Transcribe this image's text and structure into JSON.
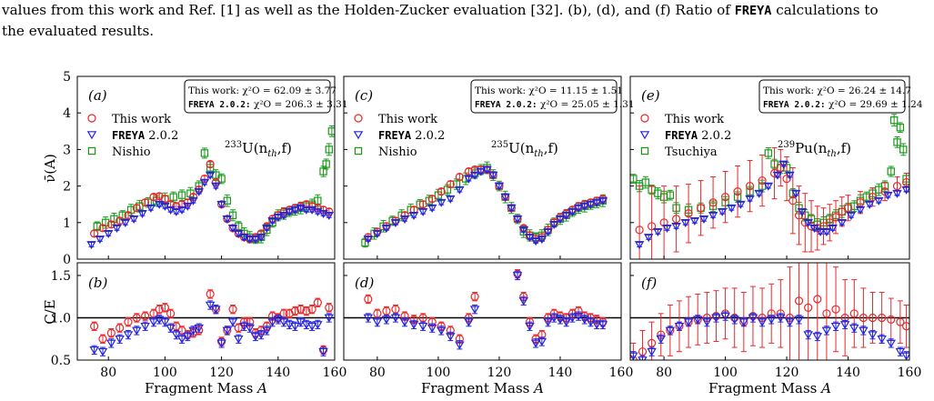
{
  "caption": {
    "line1_pre": "values from this work and Ref. [1] as well as the Holden-Zucker evaluation [32]. (b), (d), and (f) Ratio of ",
    "line1_code": "FREYA",
    "line1_post": " calculations to",
    "line2": "the evaluated results."
  },
  "shared": {
    "xlabel": "Fragment Mass A",
    "ylabel_top": "ν̄(A)",
    "ylabel_bottom": "C/E",
    "xlim": [
      69,
      160
    ],
    "xticks": [
      80,
      100,
      120,
      140,
      160
    ],
    "top_ylim": [
      0,
      5
    ],
    "top_yticks": [
      0,
      1,
      2,
      3,
      4,
      5
    ],
    "bottom_ylim": [
      0.5,
      1.65
    ],
    "bottom_yticks": [
      0.5,
      1.0,
      1.5
    ],
    "bottom_ytick_labels": [
      "0.5",
      "1.0",
      "1.5"
    ],
    "reference_line": 1.0,
    "colors": {
      "this_work": "#e8282a",
      "freya": "#2323e0",
      "other": "#1a9a1a"
    },
    "markers": {
      "this_work": "circle",
      "freya": "triangle-down",
      "other": "square"
    }
  },
  "chart_data": [
    {
      "type": "scatter",
      "panel_top": "(a)",
      "panel_bottom": "(b)",
      "reaction_sup": "233",
      "reaction_main": "U(n",
      "reaction_sub": "th",
      "reaction_end": ",f)",
      "chi2_line1": "This work: χ²O = 62.09 ± 3.77",
      "chi2_line2_code": "FREYA 2.0.2:",
      "chi2_line2_rest": " χ²O = 206.3 ± 3.31",
      "legend": [
        "This work",
        "FREYA 2.0.2",
        "Nishio"
      ],
      "this_work_x": [
        75,
        78,
        81,
        84,
        87,
        90,
        93,
        96,
        98,
        100,
        102,
        104,
        106,
        108,
        110,
        112,
        114,
        116,
        118,
        120,
        122,
        124,
        126,
        128,
        130,
        132,
        134,
        136,
        138,
        140,
        142,
        144,
        146,
        148,
        150,
        152,
        154,
        156,
        158
      ],
      "this_work_y": [
        0.7,
        0.85,
        0.95,
        1.05,
        1.2,
        1.4,
        1.55,
        1.7,
        1.72,
        1.65,
        1.5,
        1.45,
        1.5,
        1.55,
        1.7,
        1.9,
        2.2,
        2.6,
        2.1,
        1.5,
        1.1,
        0.85,
        0.7,
        0.6,
        0.55,
        0.6,
        0.7,
        0.9,
        1.1,
        1.2,
        1.3,
        1.35,
        1.4,
        1.45,
        1.5,
        1.45,
        1.4,
        1.35,
        1.3
      ],
      "freya_x": [
        74,
        77,
        80,
        83,
        86,
        89,
        92,
        95,
        98,
        100,
        102,
        104,
        106,
        108,
        110,
        112,
        114,
        116,
        118,
        120,
        122,
        124,
        126,
        128,
        130,
        132,
        134,
        136,
        138,
        140,
        142,
        144,
        146,
        148,
        150,
        152,
        154,
        156,
        158
      ],
      "freya_y": [
        0.4,
        0.55,
        0.7,
        0.85,
        1.0,
        1.1,
        1.25,
        1.4,
        1.5,
        1.45,
        1.35,
        1.3,
        1.35,
        1.45,
        1.6,
        1.85,
        2.1,
        2.3,
        2.0,
        1.5,
        1.1,
        0.85,
        0.7,
        0.6,
        0.55,
        0.55,
        0.6,
        0.85,
        1.05,
        1.15,
        1.2,
        1.3,
        1.35,
        1.4,
        1.35,
        1.35,
        1.3,
        1.25,
        1.2
      ],
      "other_x": [
        76,
        79,
        82,
        85,
        88,
        91,
        94,
        97,
        100,
        103,
        106,
        109,
        112,
        114,
        116,
        118,
        120,
        122,
        124,
        126,
        128,
        130,
        132,
        134,
        136,
        138,
        140,
        142,
        144,
        146,
        148,
        150,
        152,
        154,
        156,
        157,
        158,
        159
      ],
      "other_y": [
        0.9,
        1.0,
        1.1,
        1.2,
        1.35,
        1.45,
        1.55,
        1.6,
        1.65,
        1.7,
        1.75,
        1.8,
        2.0,
        2.9,
        2.5,
        2.3,
        2.2,
        1.6,
        1.2,
        0.9,
        0.7,
        0.6,
        0.55,
        0.6,
        0.8,
        1.0,
        1.2,
        1.25,
        1.3,
        1.35,
        1.4,
        1.45,
        1.5,
        1.6,
        2.4,
        2.6,
        3.0,
        3.5
      ],
      "ratio_this_work_x": [
        75,
        78,
        81,
        84,
        87,
        90,
        93,
        96,
        98,
        100,
        102,
        104,
        106,
        108,
        110,
        112,
        116,
        118,
        120,
        122,
        124,
        126,
        128,
        130,
        132,
        134,
        136,
        138,
        140,
        142,
        144,
        146,
        148,
        150,
        152,
        154,
        156,
        158
      ],
      "ratio_this_work_y": [
        0.9,
        0.75,
        0.82,
        0.88,
        0.95,
        1.0,
        1.02,
        1.05,
        1.1,
        1.12,
        1.05,
        0.9,
        0.85,
        0.8,
        0.82,
        0.85,
        1.28,
        1.1,
        0.72,
        0.85,
        1.1,
        0.88,
        0.95,
        0.95,
        0.82,
        0.85,
        0.9,
        1.02,
        1.0,
        1.05,
        1.05,
        1.08,
        1.1,
        1.08,
        1.1,
        1.18,
        0.62,
        1.12
      ],
      "ratio_freya_x": [
        75,
        78,
        81,
        84,
        87,
        90,
        93,
        96,
        98,
        100,
        102,
        104,
        106,
        108,
        110,
        112,
        116,
        118,
        120,
        122,
        124,
        126,
        128,
        130,
        132,
        134,
        136,
        138,
        140,
        142,
        144,
        146,
        148,
        150,
        152,
        154,
        156,
        158
      ],
      "ratio_freya_y": [
        0.62,
        0.6,
        0.7,
        0.75,
        0.8,
        0.85,
        0.9,
        0.95,
        0.98,
        0.95,
        0.88,
        0.8,
        0.75,
        0.78,
        0.85,
        0.88,
        1.15,
        1.1,
        0.7,
        0.85,
        0.95,
        0.75,
        0.9,
        0.88,
        0.78,
        0.8,
        0.85,
        0.95,
        0.98,
        0.95,
        0.92,
        0.9,
        0.95,
        0.92,
        0.9,
        0.92,
        0.6,
        1.0
      ]
    },
    {
      "type": "scatter",
      "panel_top": "(c)",
      "panel_bottom": "(d)",
      "reaction_sup": "235",
      "reaction_main": "U(n",
      "reaction_sub": "th",
      "reaction_end": ",f)",
      "chi2_line1": "This work: χ²O = 11.15 ± 1.51",
      "chi2_line2_code": "FREYA 2.0.2:",
      "chi2_line2_rest": " χ²O = 25.05 ± 1.31",
      "legend": [
        "This work",
        "FREYA 2.0.2",
        "Nishio"
      ],
      "this_work_x": [
        77,
        80,
        83,
        86,
        89,
        92,
        95,
        98,
        101,
        104,
        107,
        110,
        112,
        114,
        116,
        118,
        120,
        122,
        124,
        126,
        128,
        130,
        132,
        134,
        136,
        138,
        140,
        142,
        144,
        146,
        148,
        150,
        152,
        154
      ],
      "this_work_y": [
        0.6,
        0.75,
        0.9,
        1.05,
        1.2,
        1.35,
        1.5,
        1.65,
        1.85,
        2.05,
        2.25,
        2.4,
        2.45,
        2.45,
        2.45,
        2.3,
        2.0,
        1.7,
        1.4,
        1.1,
        0.85,
        0.65,
        0.55,
        0.6,
        0.8,
        1.0,
        1.15,
        1.25,
        1.35,
        1.45,
        1.5,
        1.55,
        1.6,
        1.65
      ],
      "freya_x": [
        77,
        80,
        83,
        86,
        89,
        92,
        95,
        98,
        101,
        104,
        107,
        110,
        112,
        114,
        116,
        118,
        120,
        122,
        124,
        126,
        128,
        130,
        132,
        134,
        136,
        138,
        140,
        142,
        144,
        146,
        148,
        150,
        152,
        154
      ],
      "freya_y": [
        0.55,
        0.7,
        0.85,
        1.0,
        1.1,
        1.2,
        1.3,
        1.4,
        1.55,
        1.65,
        1.9,
        2.2,
        2.3,
        2.4,
        2.45,
        2.3,
        2.0,
        1.7,
        1.4,
        1.1,
        0.8,
        0.6,
        0.5,
        0.55,
        0.75,
        0.95,
        1.1,
        1.2,
        1.3,
        1.4,
        1.45,
        1.5,
        1.55,
        1.6
      ],
      "other_x": [
        76,
        79,
        82,
        85,
        88,
        91,
        94,
        97,
        100,
        103,
        106,
        109,
        112,
        114,
        116,
        118,
        120,
        122,
        124,
        126,
        128,
        130,
        132,
        134,
        136,
        138,
        140,
        142,
        144,
        146,
        148,
        150,
        152,
        154
      ],
      "other_y": [
        0.45,
        0.7,
        0.9,
        1.05,
        1.2,
        1.35,
        1.5,
        1.6,
        1.75,
        1.9,
        2.05,
        2.2,
        2.35,
        2.45,
        2.5,
        2.3,
        2.0,
        1.7,
        1.4,
        1.1,
        0.75,
        0.65,
        0.6,
        0.65,
        0.8,
        1.0,
        1.1,
        1.2,
        1.3,
        1.4,
        1.45,
        1.5,
        1.55,
        1.6
      ],
      "ratio_this_work_x": [
        77,
        80,
        83,
        86,
        89,
        92,
        95,
        98,
        101,
        104,
        107,
        110,
        112,
        126,
        128,
        130,
        132,
        134,
        136,
        138,
        140,
        142,
        144,
        146,
        148,
        150,
        152,
        154
      ],
      "ratio_this_work_y": [
        1.22,
        1.05,
        1.08,
        1.1,
        1.02,
        0.98,
        1.0,
        0.95,
        0.9,
        0.85,
        0.75,
        1.0,
        1.25,
        1.52,
        1.25,
        0.95,
        0.75,
        0.8,
        1.0,
        1.05,
        1.02,
        1.0,
        1.05,
        1.08,
        1.02,
        1.0,
        0.98,
        0.95
      ],
      "ratio_freya_x": [
        77,
        80,
        83,
        86,
        89,
        92,
        95,
        98,
        101,
        104,
        107,
        110,
        112,
        126,
        128,
        130,
        132,
        134,
        136,
        138,
        140,
        142,
        144,
        146,
        148,
        150,
        152,
        154
      ],
      "ratio_freya_y": [
        1.0,
        0.95,
        0.98,
        1.0,
        0.95,
        0.92,
        0.9,
        0.88,
        0.85,
        0.78,
        0.68,
        0.95,
        1.1,
        1.5,
        1.2,
        0.9,
        0.7,
        0.72,
        0.95,
        1.0,
        0.98,
        0.95,
        1.0,
        1.02,
        0.98,
        0.95,
        0.92,
        0.92
      ]
    },
    {
      "type": "scatter",
      "panel_top": "(e)",
      "panel_bottom": "(f)",
      "reaction_sup": "239",
      "reaction_main": "Pu(n",
      "reaction_sub": "th",
      "reaction_end": ",f)",
      "chi2_line1": "This work: χ²O = 26.24 ± 14.7",
      "chi2_line2_code": "FREYA 2.0.2:",
      "chi2_line2_rest": " χ²O = 29.69 ± 1.24",
      "legend": [
        "This work",
        "FREYA 2.0.2",
        "Tsuchiya"
      ],
      "this_work_x": [
        72,
        76,
        80,
        84,
        88,
        92,
        96,
        100,
        104,
        108,
        112,
        116,
        118,
        120,
        122,
        124,
        126,
        128,
        130,
        132,
        134,
        136,
        138,
        140,
        144,
        148,
        152,
        156,
        159
      ],
      "this_work_y": [
        0.8,
        0.9,
        1.0,
        1.1,
        1.25,
        1.4,
        1.55,
        1.7,
        1.85,
        2.0,
        2.15,
        2.35,
        2.5,
        2.2,
        1.6,
        1.2,
        1.0,
        0.9,
        0.85,
        0.9,
        1.0,
        1.15,
        1.3,
        1.4,
        1.55,
        1.7,
        1.85,
        2.0,
        2.1
      ],
      "this_work_err": [
        1.2,
        1.1,
        1.0,
        0.9,
        0.8,
        0.75,
        0.7,
        0.7,
        0.7,
        0.7,
        0.7,
        0.7,
        0.5,
        0.6,
        0.9,
        0.8,
        0.8,
        0.7,
        0.6,
        0.5,
        0.5,
        0.45,
        0.4,
        0.35,
        0.3,
        0.25,
        0.25,
        0.25,
        0.25
      ],
      "freya_x": [
        72,
        75,
        78,
        81,
        84,
        87,
        90,
        93,
        96,
        99,
        102,
        105,
        108,
        111,
        114,
        117,
        119,
        121,
        123,
        125,
        127,
        129,
        131,
        133,
        135,
        138,
        141,
        144,
        147,
        150,
        153,
        156,
        159
      ],
      "freya_y": [
        0.4,
        0.6,
        0.75,
        0.85,
        0.9,
        1.0,
        1.05,
        1.1,
        1.2,
        1.3,
        1.4,
        1.5,
        1.65,
        1.8,
        2.0,
        2.3,
        2.6,
        2.3,
        1.8,
        1.3,
        1.0,
        0.85,
        0.75,
        0.75,
        0.85,
        1.0,
        1.2,
        1.35,
        1.5,
        1.6,
        1.75,
        1.8,
        1.9
      ],
      "other_x": [
        70,
        72,
        74,
        76,
        78,
        80,
        82,
        84,
        88,
        92,
        96,
        100,
        104,
        108,
        112,
        114,
        116,
        118,
        120,
        122,
        124,
        126,
        128,
        130,
        132,
        134,
        136,
        138,
        140,
        142,
        144,
        146,
        148,
        150,
        152,
        154,
        155,
        156,
        157,
        158,
        159
      ],
      "other_y": [
        2.2,
        2.0,
        2.1,
        1.9,
        1.8,
        1.7,
        1.75,
        1.4,
        1.35,
        1.4,
        1.45,
        1.55,
        1.7,
        1.85,
        2.0,
        2.9,
        2.6,
        2.5,
        2.5,
        1.8,
        1.4,
        1.2,
        1.1,
        0.95,
        1.0,
        1.1,
        1.2,
        1.3,
        1.4,
        1.45,
        1.6,
        1.7,
        1.8,
        1.9,
        2.0,
        2.4,
        3.8,
        3.2,
        3.6,
        3.0,
        2.2
      ],
      "ratio_this_work_x": [
        70,
        73,
        76,
        79,
        82,
        85,
        88,
        91,
        94,
        97,
        100,
        103,
        106,
        109,
        112,
        115,
        118,
        121,
        124,
        127,
        130,
        133,
        136,
        139,
        142,
        145,
        148,
        151,
        154,
        157,
        159
      ],
      "ratio_this_work_y": [
        0.5,
        0.6,
        0.7,
        0.8,
        0.85,
        0.9,
        0.95,
        0.98,
        1.0,
        1.02,
        1.05,
        1.0,
        0.95,
        1.02,
        1.0,
        1.05,
        1.05,
        1.0,
        1.2,
        1.12,
        1.22,
        1.05,
        1.1,
        1.0,
        1.05,
        1.0,
        1.0,
        1.0,
        0.98,
        0.95,
        0.9
      ],
      "ratio_this_work_err": [
        0.2,
        0.25,
        0.25,
        0.25,
        0.3,
        0.3,
        0.3,
        0.3,
        0.3,
        0.3,
        0.3,
        0.35,
        0.35,
        0.35,
        0.35,
        0.35,
        0.4,
        0.6,
        1.0,
        1.0,
        0.9,
        0.6,
        0.5,
        0.45,
        0.4,
        0.35,
        0.3,
        0.3,
        0.25,
        0.25,
        0.25
      ],
      "ratio_freya_x": [
        70,
        73,
        76,
        79,
        82,
        85,
        88,
        91,
        94,
        97,
        100,
        103,
        106,
        109,
        112,
        115,
        118,
        121,
        124,
        127,
        130,
        133,
        136,
        139,
        142,
        145,
        148,
        151,
        154,
        157,
        159
      ],
      "ratio_freya_y": [
        0.55,
        0.5,
        0.6,
        0.75,
        0.85,
        0.9,
        0.95,
        0.98,
        0.95,
        1.0,
        1.02,
        0.98,
        0.95,
        1.0,
        0.95,
        0.98,
        1.0,
        0.95,
        0.98,
        0.8,
        0.78,
        0.85,
        0.9,
        0.92,
        0.88,
        0.85,
        0.8,
        0.75,
        0.7,
        0.6,
        0.55
      ]
    }
  ]
}
